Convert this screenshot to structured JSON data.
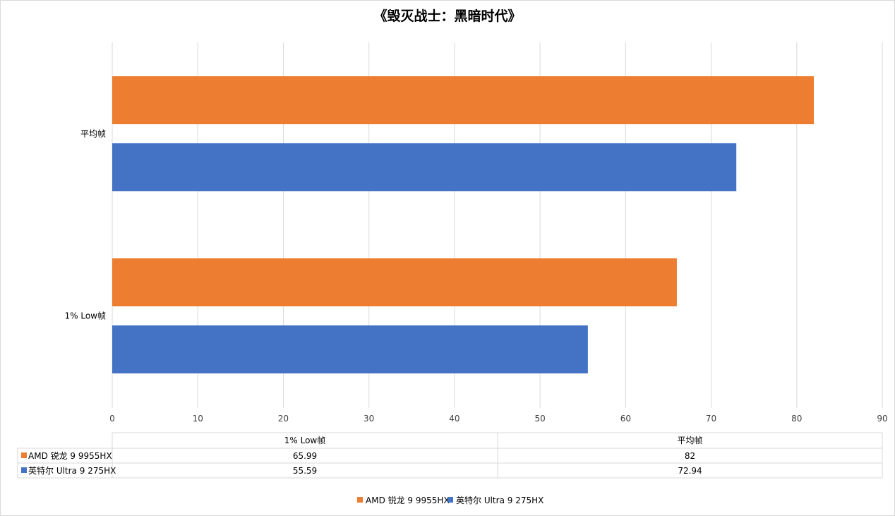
{
  "chart_data": {
    "type": "bar",
    "orientation": "horizontal",
    "title": "《毁灭战士：黑暗时代》",
    "categories": [
      "1% Low帧",
      "平均帧"
    ],
    "series": [
      {
        "name": "AMD 锐龙 9 9955HX",
        "color": "#ED7D31",
        "values": [
          65.99,
          82
        ]
      },
      {
        "name": "英特尔 Ultra 9 275HX",
        "color": "#4472C4",
        "values": [
          55.59,
          72.94
        ]
      }
    ],
    "xlim": [
      0,
      90
    ],
    "xticks": [
      "0",
      "10",
      "20",
      "30",
      "40",
      "50",
      "60",
      "70",
      "80",
      "90"
    ],
    "grid": true,
    "legend": "bottom",
    "data_table": {
      "headers": [
        "1% Low帧",
        "平均帧"
      ],
      "rows": [
        {
          "label": "AMD 锐龙 9 9955HX",
          "cells": [
            "65.99",
            "82"
          ]
        },
        {
          "label": "英特尔 Ultra 9 275HX",
          "cells": [
            "55.59",
            "72.94"
          ]
        }
      ]
    }
  }
}
